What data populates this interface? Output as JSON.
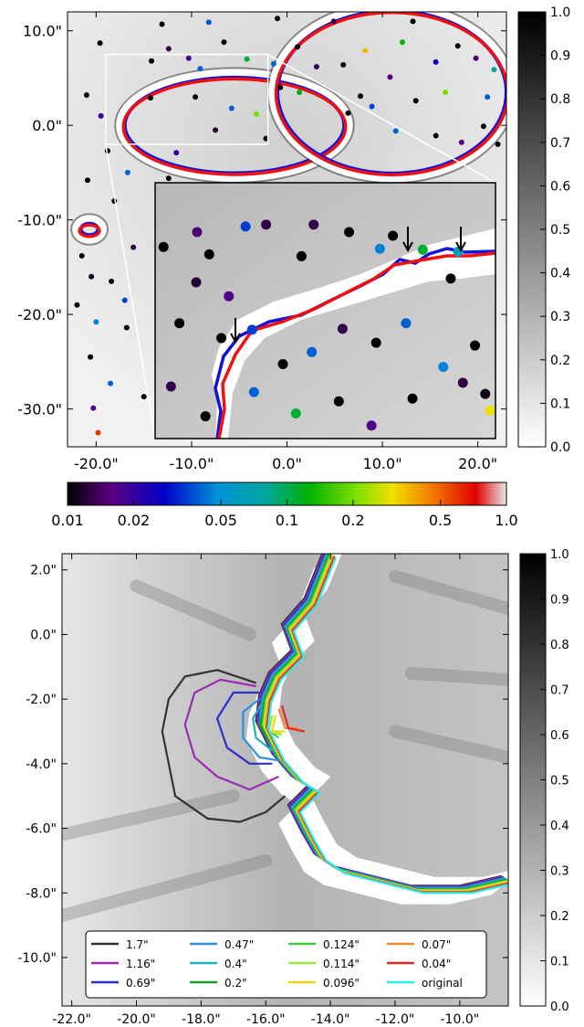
{
  "chart_data": [
    {
      "panel": "top",
      "type": "scatter",
      "title": "",
      "xlabel": "",
      "ylabel": "",
      "xlim": [
        -23,
        23
      ],
      "ylim": [
        -34,
        12
      ],
      "x_ticks": [
        -20,
        -10,
        0,
        10,
        20
      ],
      "x_tick_labels": [
        "-20.0\"",
        "-10.0\"",
        "0.0\"",
        "10.0\"",
        "20.0\""
      ],
      "y_ticks": [
        10,
        0,
        -10,
        -20,
        -30
      ],
      "y_tick_labels": [
        "10.0\"",
        "0.0\"",
        "-10.0\"",
        "-20.0\"",
        "-30.0\""
      ],
      "background": "grayscale image",
      "contour_colors": {
        "outer": "#ee1111",
        "inner": "#1111dd"
      },
      "rings": [
        {
          "name": "left ring",
          "center": [
            -5.5,
            0.0
          ],
          "radii": [
            11.5,
            5.0
          ]
        },
        {
          "name": "right ring",
          "center": [
            11.0,
            3.5
          ],
          "radii": [
            12.0,
            8.5
          ]
        },
        {
          "name": "small blob",
          "center": [
            -20.7,
            -11.0
          ],
          "radii": [
            0.9,
            0.6
          ]
        }
      ],
      "zoom_box": {
        "x": [
          -19,
          -2
        ],
        "y": [
          -2,
          7.5
        ]
      },
      "inset_region": {
        "x": [
          -14.5,
          22
        ],
        "y": [
          -34,
          -6.5
        ]
      },
      "points": [
        [
          -14.2,
          6.8,
          0.001
        ],
        [
          -12.4,
          8.1,
          0.013
        ],
        [
          -10.3,
          7.1,
          0.018
        ],
        [
          -9.1,
          6.0,
          0.04
        ],
        [
          -6.6,
          8.8,
          0.0
        ],
        [
          -4.2,
          7.0,
          0.11
        ],
        [
          -1.4,
          6.5,
          0.04
        ],
        [
          1.1,
          8.3,
          0.0
        ],
        [
          3.1,
          6.2,
          0.013
        ],
        [
          5.9,
          6.4,
          0.0
        ],
        [
          8.2,
          7.9,
          0.35
        ],
        [
          12.1,
          8.8,
          0.13
        ],
        [
          15.6,
          6.7,
          0.027
        ],
        [
          17.9,
          8.4,
          0.0
        ],
        [
          19.8,
          7.1,
          0.015
        ],
        [
          -13.1,
          10.7,
          0.0
        ],
        [
          -8.2,
          10.9,
          0.038
        ],
        [
          -1.0,
          11.3,
          0.0
        ],
        [
          4.9,
          11.0,
          0.013
        ],
        [
          13.2,
          11.0,
          0.0
        ],
        [
          -19.6,
          8.7,
          0.0
        ],
        [
          -21.0,
          3.2,
          0.0
        ],
        [
          -19.5,
          1.0,
          0.02
        ],
        [
          -18.8,
          -2.7,
          0.0
        ],
        [
          -16.7,
          -5.0,
          0.04
        ],
        [
          -20.9,
          -5.8,
          0.0
        ],
        [
          -18.1,
          -8.0,
          0.0
        ],
        [
          -16.1,
          -12.9,
          0.013
        ],
        [
          -18.4,
          -16.5,
          0.0
        ],
        [
          -20.0,
          -20.8,
          0.045
        ],
        [
          -16.8,
          -21.4,
          0.0
        ],
        [
          -20.6,
          -24.5,
          0.0
        ],
        [
          -18.5,
          -27.3,
          0.04
        ],
        [
          -15.0,
          -28.7,
          0.0
        ],
        [
          -20.3,
          -29.9,
          0.017
        ],
        [
          -19.8,
          -32.5,
          0.6
        ],
        [
          -21.5,
          -13.8,
          0.0
        ],
        [
          -17.0,
          -18.5,
          0.035
        ],
        [
          -22.0,
          -19.0,
          0.0
        ],
        [
          -20.5,
          -16.0,
          0.011
        ],
        [
          -9.6,
          3.0,
          0.0
        ],
        [
          -5.8,
          1.8,
          0.04
        ],
        [
          -2.2,
          -1.4,
          0.0
        ],
        [
          -7.5,
          -0.5,
          0.012
        ],
        [
          -3.2,
          1.2,
          0.2
        ],
        [
          7.7,
          3.1,
          0.0
        ],
        [
          10.8,
          5.1,
          0.015
        ],
        [
          13.5,
          2.6,
          0.0
        ],
        [
          16.6,
          3.5,
          0.2
        ],
        [
          11.4,
          -0.6,
          0.04
        ],
        [
          3.4,
          -6.3,
          0.0
        ],
        [
          -3.2,
          -6.4,
          0.013
        ],
        [
          -12.4,
          -5.6,
          0.0
        ],
        [
          22.1,
          -2.0,
          0.0
        ],
        [
          21.0,
          3.0,
          0.04
        ],
        [
          6.4,
          1.3,
          0.0
        ],
        [
          8.9,
          2.0,
          0.035
        ],
        [
          15.6,
          -1.1,
          0.0
        ],
        [
          1.3,
          3.5,
          0.12
        ],
        [
          -0.7,
          4.0,
          0.0
        ],
        [
          18.3,
          -1.8,
          0.015
        ],
        [
          20.6,
          -0.1,
          0.0
        ],
        [
          21.7,
          5.9,
          0.08
        ],
        [
          -14.3,
          2.9,
          0.0
        ],
        [
          -11.6,
          -2.9,
          0.02
        ]
      ],
      "inset_points": [
        [
          -13.6,
          -13.4,
          0.0
        ],
        [
          -10.0,
          -11.8,
          0.015
        ],
        [
          -8.7,
          -14.2,
          0.0
        ],
        [
          -4.8,
          -11.2,
          0.035
        ],
        [
          -2.6,
          -11.0,
          0.013
        ],
        [
          1.2,
          -14.4,
          0.0
        ],
        [
          2.5,
          -11.0,
          0.013
        ],
        [
          6.3,
          -11.8,
          0.0
        ],
        [
          9.6,
          -13.6,
          0.045
        ],
        [
          11.0,
          -12.2,
          0.0
        ],
        [
          14.2,
          -13.7,
          0.11
        ],
        [
          17.2,
          -16.8,
          0.0
        ],
        [
          18.0,
          -13.9,
          0.06
        ],
        [
          -11.9,
          -21.6,
          0.0
        ],
        [
          -10.1,
          -17.2,
          0.012
        ],
        [
          -7.4,
          -23.2,
          0.0
        ],
        [
          -4.1,
          -22.3,
          0.035
        ],
        [
          -0.8,
          -26.0,
          0.0
        ],
        [
          2.3,
          -24.7,
          0.04
        ],
        [
          5.6,
          -22.2,
          0.013
        ],
        [
          9.2,
          -23.7,
          0.0
        ],
        [
          12.4,
          -21.6,
          0.04
        ],
        [
          16.4,
          -26.3,
          0.045
        ],
        [
          19.8,
          -24.0,
          0.0
        ],
        [
          -12.8,
          -28.4,
          0.013
        ],
        [
          -9.1,
          -31.6,
          0.0
        ],
        [
          -3.9,
          -29.0,
          0.04
        ],
        [
          0.6,
          -31.3,
          0.11
        ],
        [
          5.2,
          -30.0,
          0.0
        ],
        [
          8.7,
          -32.6,
          0.017
        ],
        [
          13.1,
          -29.7,
          0.0
        ],
        [
          18.5,
          -28.0,
          0.013
        ],
        [
          20.9,
          -29.2,
          0.011
        ],
        [
          21.4,
          -31.0,
          0.3
        ],
        [
          -6.6,
          -18.7,
          0.017
        ]
      ],
      "colorbar_right": {
        "min": 0.0,
        "max": 1.0,
        "tick_labels": [
          "0.0",
          "0.1",
          "0.2",
          "0.3",
          "0.4",
          "0.5",
          "0.6",
          "0.7",
          "0.8",
          "0.9",
          "1.0"
        ]
      },
      "colorbar_bottom": {
        "scale": "log",
        "min": 0.01,
        "max": 1.0,
        "ticks": [
          0.01,
          0.02,
          0.05,
          0.1,
          0.2,
          0.5,
          1.0
        ],
        "tick_labels": [
          "0.01",
          "0.02",
          "0.05",
          "0.1",
          "0.2",
          "0.5",
          "1.0"
        ]
      }
    },
    {
      "panel": "bottom",
      "type": "line",
      "title": "",
      "xlabel": "",
      "ylabel": "",
      "xlim": [
        -22.3,
        -8.5
      ],
      "ylim": [
        -11.5,
        2.5
      ],
      "x_ticks": [
        -22,
        -20,
        -18,
        -16,
        -14,
        -12,
        -10
      ],
      "x_tick_labels": [
        "-22.0\"",
        "-20.0\"",
        "-18.0\"",
        "-16.0\"",
        "-14.0\"",
        "-12.0\"",
        "-10.0\""
      ],
      "y_ticks": [
        2,
        0,
        -2,
        -4,
        -6,
        -8,
        -10
      ],
      "y_tick_labels": [
        "2.0\"",
        "0.0\"",
        "-2.0\"",
        "-4.0\"",
        "-6.0\"",
        "-8.0\"",
        "-10.0\""
      ],
      "legend": [
        {
          "label": "1.7\"",
          "color": "#333333"
        },
        {
          "label": "1.16\"",
          "color": "#9a2bb0"
        },
        {
          "label": "0.69\"",
          "color": "#2a30c8"
        },
        {
          "label": "0.47\"",
          "color": "#2e8fe0"
        },
        {
          "label": "0.4\"",
          "color": "#20b0c0"
        },
        {
          "label": "0.2\"",
          "color": "#1a9a2a"
        },
        {
          "label": "0.124\"",
          "color": "#40c840"
        },
        {
          "label": "0.114\"",
          "color": "#9ae83c"
        },
        {
          "label": "0.096\"",
          "color": "#e8d81c"
        },
        {
          "label": "0.07\"",
          "color": "#f08a30"
        },
        {
          "label": "0.04\"",
          "color": "#e02a20"
        },
        {
          "label": "original",
          "color": "#22eeee"
        }
      ],
      "legend_position": "bottom",
      "ridge": [
        [
          -14.0,
          2.5
        ],
        [
          -14.6,
          1.0
        ],
        [
          -15.3,
          0.2
        ],
        [
          -15.0,
          -0.6
        ],
        [
          -15.7,
          -1.3
        ],
        [
          -16.0,
          -2.0
        ],
        [
          -16.1,
          -2.8
        ],
        [
          -15.6,
          -3.8
        ],
        [
          -15.0,
          -4.5
        ],
        [
          -14.5,
          -4.8
        ],
        [
          -15.1,
          -5.4
        ],
        [
          -14.7,
          -6.2
        ],
        [
          -14.3,
          -6.9
        ],
        [
          -13.7,
          -7.3
        ],
        [
          -12.5,
          -7.6
        ],
        [
          -11.3,
          -7.9
        ],
        [
          -9.8,
          -7.9
        ],
        [
          -8.5,
          -7.6
        ]
      ],
      "excursions": [
        {
          "series": "1.7\"",
          "outline": [
            [
              -16.3,
              -1.5
            ],
            [
              -17.5,
              -1.1
            ],
            [
              -18.5,
              -1.3
            ],
            [
              -19.0,
              -2.0
            ],
            [
              -19.2,
              -3.0
            ],
            [
              -19.0,
              -4.0
            ],
            [
              -18.8,
              -5.0
            ],
            [
              -17.8,
              -5.7
            ],
            [
              -16.8,
              -5.8
            ],
            [
              -16.0,
              -5.5
            ],
            [
              -15.4,
              -5.0
            ]
          ]
        },
        {
          "series": "1.16\"",
          "outline": [
            [
              -16.3,
              -1.6
            ],
            [
              -17.4,
              -1.4
            ],
            [
              -18.2,
              -1.8
            ],
            [
              -18.5,
              -2.8
            ],
            [
              -18.2,
              -3.8
            ],
            [
              -17.5,
              -4.4
            ],
            [
              -16.5,
              -4.8
            ],
            [
              -15.6,
              -4.4
            ]
          ]
        },
        {
          "series": "0.69\"",
          "outline": [
            [
              -16.2,
              -1.8
            ],
            [
              -17.0,
              -1.8
            ],
            [
              -17.5,
              -2.6
            ],
            [
              -17.2,
              -3.5
            ],
            [
              -16.5,
              -4.0
            ],
            [
              -15.8,
              -4.0
            ]
          ]
        },
        {
          "series": "0.47\"",
          "outline": [
            [
              -16.2,
              -2.0
            ],
            [
              -16.7,
              -2.4
            ],
            [
              -16.7,
              -3.2
            ],
            [
              -16.2,
              -3.8
            ],
            [
              -15.6,
              -3.9
            ]
          ]
        },
        {
          "series": "0.4\"",
          "outline": [
            [
              -16.1,
              -2.1
            ],
            [
              -16.4,
              -2.6
            ],
            [
              -16.3,
              -3.2
            ],
            [
              -15.8,
              -3.6
            ]
          ]
        },
        {
          "series": "0.2\"",
          "outline": [
            [
              -16.0,
              -2.2
            ],
            [
              -16.2,
              -2.8
            ],
            [
              -15.9,
              -3.3
            ]
          ]
        },
        {
          "series": "0.124\"",
          "outline": [
            [
              -15.9,
              -2.4
            ],
            [
              -16.0,
              -2.9
            ],
            [
              -15.6,
              -3.2
            ]
          ]
        },
        {
          "series": "0.114\"",
          "outline": [
            [
              -15.8,
              -2.5
            ],
            [
              -15.9,
              -3.0
            ],
            [
              -15.5,
              -3.1
            ]
          ]
        },
        {
          "series": "0.096\"",
          "outline": [
            [
              -15.7,
              -2.5
            ],
            [
              -15.8,
              -3.0
            ],
            [
              -15.4,
              -3.0
            ]
          ]
        },
        {
          "series": "0.07\"",
          "outline": [
            [
              -15.6,
              -2.3
            ],
            [
              -15.4,
              -2.9
            ],
            [
              -15.0,
              -2.9
            ]
          ]
        },
        {
          "series": "0.04\"",
          "outline": [
            [
              -15.5,
              -2.2
            ],
            [
              -15.3,
              -2.9
            ],
            [
              -14.8,
              -3.0
            ]
          ]
        }
      ],
      "colorbar_right": {
        "min": 0.0,
        "max": 1.0,
        "tick_labels": [
          "0.0",
          "0.1",
          "0.2",
          "0.3",
          "0.4",
          "0.5",
          "0.6",
          "0.7",
          "0.8",
          "0.9",
          "1.0"
        ]
      }
    }
  ]
}
